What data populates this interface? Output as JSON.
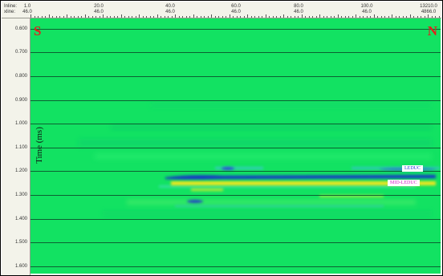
{
  "header": {
    "inline_label": "Inline:",
    "xline_label": "xline:",
    "ticks": [
      {
        "top": "1.0",
        "bottom": "46.0"
      },
      {
        "top": "20.0",
        "bottom": "46.0"
      },
      {
        "top": "40.0",
        "bottom": "46.0"
      },
      {
        "top": "60.0",
        "bottom": "46.0"
      },
      {
        "top": "80.0",
        "bottom": "46.0"
      },
      {
        "top": "100.0",
        "bottom": "46.0"
      },
      {
        "top": "13210.0",
        "bottom": "4866.0"
      }
    ]
  },
  "time_axis": {
    "label": "Time (ms)",
    "ticks": [
      "0.600",
      "0.700",
      "0.800",
      "0.900",
      "1.000",
      "1.100",
      "1.200",
      "1.300",
      "1.400",
      "1.500",
      "1.600"
    ]
  },
  "section": {
    "left_marker": "S",
    "right_marker": "N",
    "colors": {
      "background": "#12e262",
      "trough": "#1530c8",
      "peak": "#f2e61a",
      "marker": "#e0201c"
    }
  },
  "horizons": [
    {
      "name": "LEDUC",
      "color": "#1a3ad8"
    },
    {
      "name": "MID-LEDUC",
      "color": "#d21ec8"
    }
  ]
}
